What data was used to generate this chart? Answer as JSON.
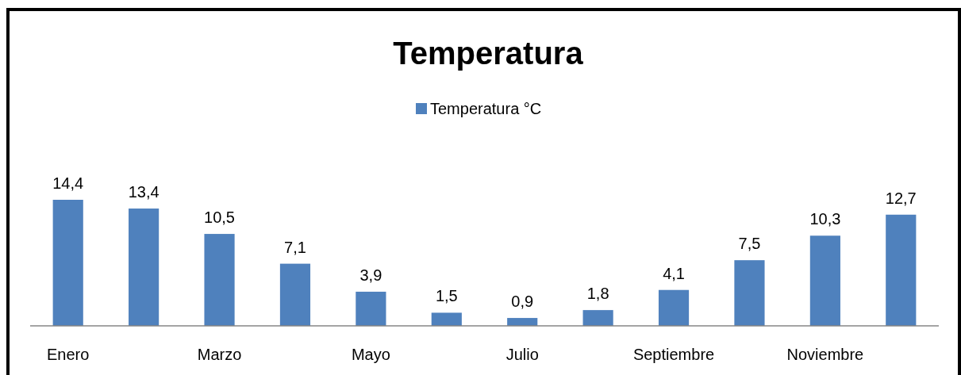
{
  "chart_data": {
    "type": "bar",
    "title": "Temperatura",
    "categories": [
      "Enero",
      null,
      "Marzo",
      null,
      "Mayo",
      null,
      "Julio",
      null,
      "Septiembre",
      null,
      "Noviembre",
      null
    ],
    "series": [
      {
        "name": "Temperatura °C",
        "color": "#4f81bd",
        "values": [
          14.4,
          13.4,
          10.5,
          7.1,
          3.9,
          1.5,
          0.9,
          1.8,
          4.1,
          7.5,
          10.3,
          12.7
        ],
        "value_labels": [
          "14,4",
          "13,4",
          "10,5",
          "7,1",
          "3,9",
          "1,5",
          "0,9",
          "1,8",
          "4,1",
          "7,5",
          "10,3",
          "12,7"
        ]
      }
    ],
    "legend": "top"
  }
}
